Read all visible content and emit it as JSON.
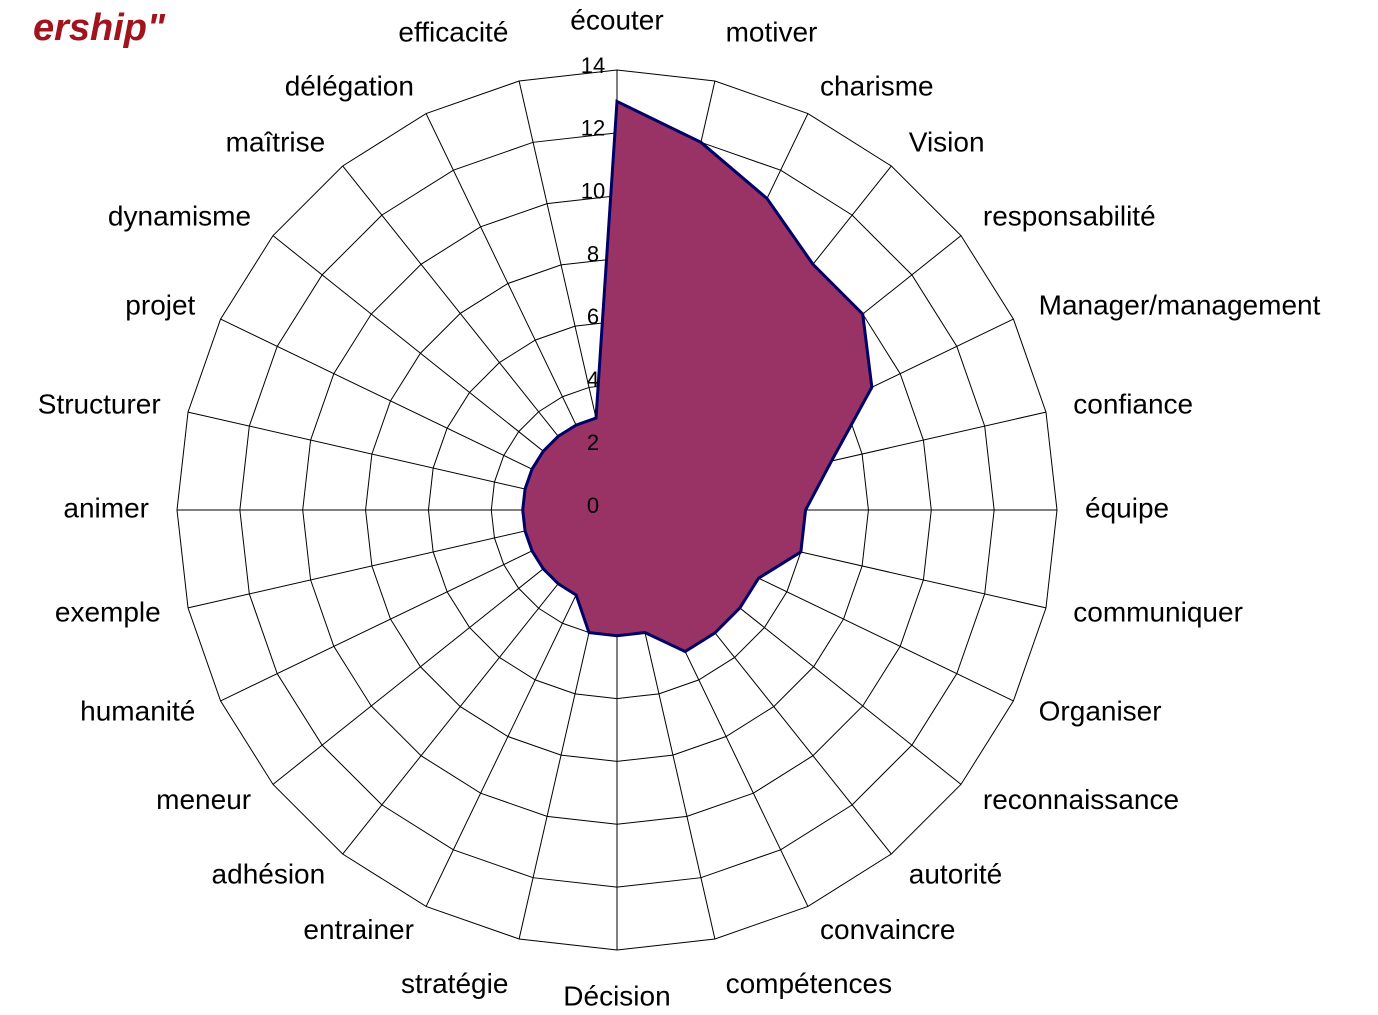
{
  "chart_data": {
    "type": "radar",
    "title": "ership\"",
    "categories": [
      "écouter",
      "motiver",
      "charisme",
      "Vision",
      "responsabilité",
      "Manager/management",
      "confiance",
      "équipe",
      "communiquer",
      "Organiser",
      "reconnaissance",
      "autorité",
      "convaincre",
      "compétences",
      "Décision",
      "stratégie",
      "entrainer",
      "adhésion",
      "meneur",
      "humanité",
      "exemple",
      "animer",
      "Structurer",
      "projet",
      "dynamisme",
      "maîtrise",
      "délégation",
      "efficacité"
    ],
    "values": [
      13,
      12,
      11,
      10,
      10,
      9,
      7,
      6,
      6,
      5,
      5,
      5,
      5,
      4,
      4,
      4,
      3,
      3,
      3,
      3,
      3,
      3,
      3,
      3,
      3,
      3,
      3,
      3
    ],
    "color": "#993366",
    "line_color": "#000066",
    "ylim": [
      0,
      14
    ],
    "yticks": [
      0,
      2,
      4,
      6,
      8,
      10,
      12,
      14
    ],
    "grid": true
  }
}
